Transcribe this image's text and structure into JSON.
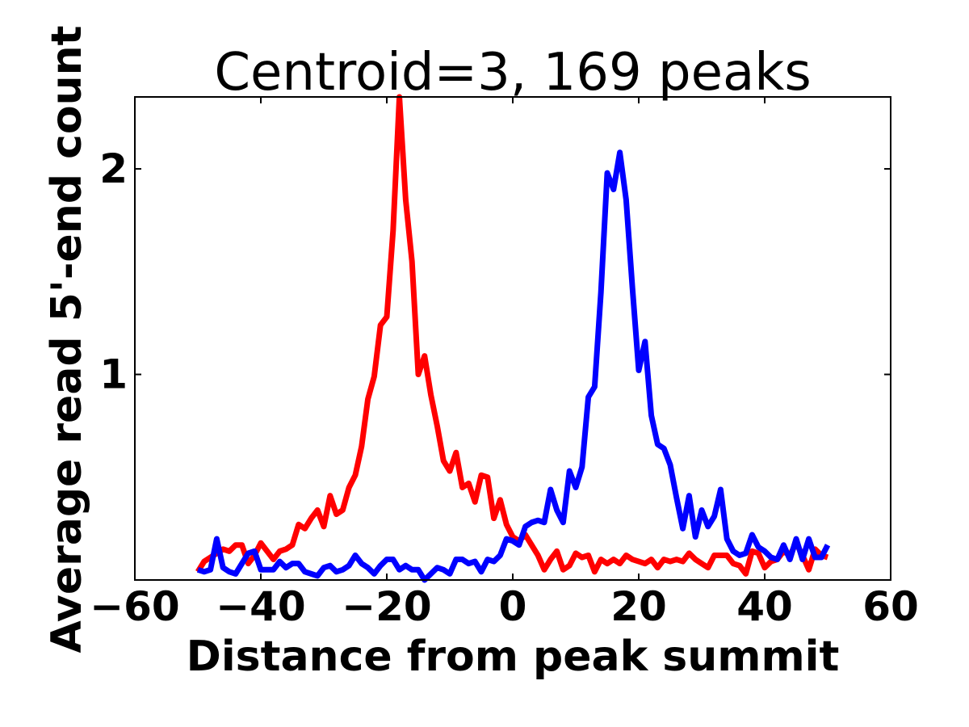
{
  "chart_data": {
    "type": "line",
    "title": "Centroid=3, 169 peaks",
    "xlabel": "Distance from peak summit",
    "ylabel": "Average read 5'-end count",
    "xlim": [
      -60,
      60
    ],
    "ylim": [
      0,
      2.35
    ],
    "x_ticks": [
      -60,
      -40,
      -20,
      0,
      20,
      40,
      60
    ],
    "x_tick_labels": [
      "−60",
      "−40",
      "−20",
      "0",
      "20",
      "40",
      "60"
    ],
    "y_ticks": [
      1,
      2
    ],
    "y_tick_labels": [
      "1",
      "2"
    ],
    "grid": false,
    "legend": "none",
    "x": [
      -50,
      -49,
      -48,
      -47,
      -46,
      -45,
      -44,
      -43,
      -42,
      -41,
      -40,
      -39,
      -38,
      -37,
      -36,
      -35,
      -34,
      -33,
      -32,
      -31,
      -30,
      -29,
      -28,
      -27,
      -26,
      -25,
      -24,
      -23,
      -22,
      -21,
      -20,
      -19,
      -18,
      -17,
      -16,
      -15,
      -14,
      -13,
      -12,
      -11,
      -10,
      -9,
      -8,
      -7,
      -6,
      -5,
      -4,
      -3,
      -2,
      -1,
      0,
      1,
      2,
      3,
      4,
      5,
      6,
      7,
      8,
      9,
      10,
      11,
      12,
      13,
      14,
      15,
      16,
      17,
      18,
      19,
      20,
      21,
      22,
      23,
      24,
      25,
      26,
      27,
      28,
      29,
      30,
      31,
      32,
      33,
      34,
      35,
      36,
      37,
      38,
      39,
      40,
      41,
      42,
      43,
      44,
      45,
      46,
      47,
      48,
      49,
      50
    ],
    "series": [
      {
        "color": "#ff0000",
        "values": [
          0.04,
          0.09,
          0.11,
          0.13,
          0.15,
          0.14,
          0.17,
          0.17,
          0.08,
          0.12,
          0.18,
          0.14,
          0.1,
          0.14,
          0.15,
          0.17,
          0.27,
          0.25,
          0.3,
          0.34,
          0.26,
          0.41,
          0.32,
          0.34,
          0.45,
          0.51,
          0.65,
          0.88,
          0.99,
          1.24,
          1.28,
          1.7,
          2.35,
          1.85,
          1.55,
          1.0,
          1.09,
          0.9,
          0.75,
          0.58,
          0.53,
          0.62,
          0.45,
          0.47,
          0.38,
          0.51,
          0.5,
          0.3,
          0.39,
          0.27,
          0.21,
          0.19,
          0.22,
          0.17,
          0.12,
          0.05,
          0.1,
          0.14,
          0.05,
          0.07,
          0.13,
          0.11,
          0.12,
          0.04,
          0.1,
          0.08,
          0.1,
          0.08,
          0.12,
          0.1,
          0.09,
          0.08,
          0.1,
          0.06,
          0.1,
          0.09,
          0.1,
          0.09,
          0.13,
          0.1,
          0.08,
          0.06,
          0.12,
          0.12,
          0.12,
          0.08,
          0.07,
          0.03,
          0.14,
          0.13,
          0.06,
          0.09,
          0.1,
          0.14,
          0.12,
          0.18,
          0.12,
          0.05,
          0.15,
          0.12,
          0.11
        ]
      },
      {
        "color": "#0000ff",
        "values": [
          0.05,
          0.04,
          0.05,
          0.2,
          0.06,
          0.04,
          0.03,
          0.08,
          0.13,
          0.14,
          0.05,
          0.05,
          0.05,
          0.09,
          0.06,
          0.08,
          0.08,
          0.04,
          0.03,
          0.02,
          0.06,
          0.07,
          0.04,
          0.05,
          0.07,
          0.12,
          0.08,
          0.06,
          0.03,
          0.07,
          0.1,
          0.1,
          0.05,
          0.07,
          0.05,
          0.05,
          0.0,
          0.03,
          0.06,
          0.05,
          0.03,
          0.1,
          0.1,
          0.08,
          0.09,
          0.04,
          0.1,
          0.09,
          0.12,
          0.2,
          0.19,
          0.17,
          0.26,
          0.28,
          0.29,
          0.28,
          0.44,
          0.34,
          0.28,
          0.53,
          0.45,
          0.55,
          0.89,
          0.94,
          1.4,
          1.98,
          1.9,
          2.08,
          1.85,
          1.42,
          1.02,
          1.16,
          0.8,
          0.66,
          0.64,
          0.56,
          0.4,
          0.25,
          0.41,
          0.21,
          0.34,
          0.26,
          0.31,
          0.44,
          0.2,
          0.14,
          0.12,
          0.13,
          0.22,
          0.16,
          0.14,
          0.11,
          0.1,
          0.17,
          0.1,
          0.2,
          0.1,
          0.2,
          0.11,
          0.11,
          0.17
        ]
      }
    ]
  }
}
